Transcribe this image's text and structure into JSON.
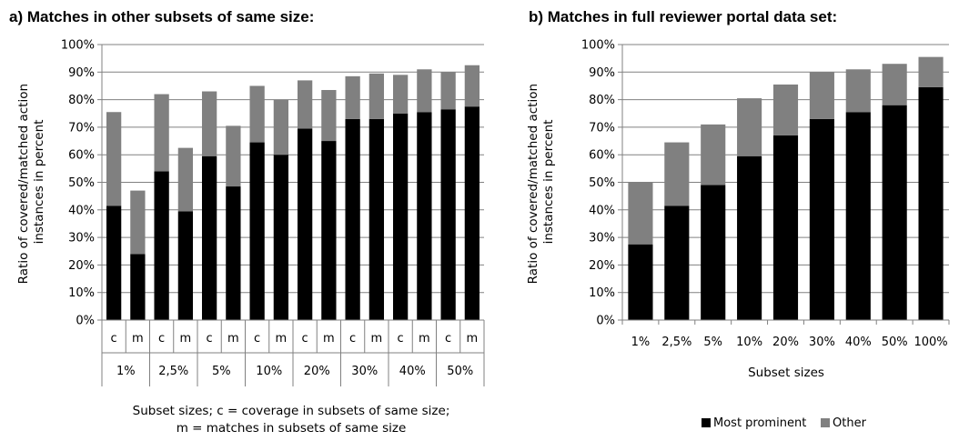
{
  "colors": {
    "most_prominent": "#000000",
    "other": "#808080",
    "axis": "#808080",
    "grid": "#808080"
  },
  "chart_data": [
    {
      "type": "bar",
      "stacked": true,
      "title": "a) Matches in other subsets of same size:",
      "ylabel_lines": [
        "Ratio of covered/matched action",
        "instances in percent"
      ],
      "xlabel_lines": [
        "Subset sizes; c = coverage in subsets of same size;",
        "m = matches in subsets of same size"
      ],
      "ylim": [
        0,
        100
      ],
      "yticks": [
        "0%",
        "10%",
        "20%",
        "30%",
        "40%",
        "50%",
        "60%",
        "70%",
        "80%",
        "90%",
        "100%"
      ],
      "grid": true,
      "groups": [
        "1%",
        "2,5%",
        "5%",
        "10%",
        "20%",
        "30%",
        "40%",
        "50%"
      ],
      "subcategories": [
        "c",
        "m"
      ],
      "series": [
        {
          "name": "Most prominent",
          "values": [
            [
              41.5,
              24
            ],
            [
              54,
              39.5
            ],
            [
              59.5,
              48.5
            ],
            [
              64.5,
              60
            ],
            [
              69.5,
              65
            ],
            [
              73,
              73
            ],
            [
              75,
              75.5
            ],
            [
              76.5,
              77.5
            ]
          ]
        },
        {
          "name": "Other",
          "values": [
            [
              34,
              23
            ],
            [
              28,
              23
            ],
            [
              23.5,
              22
            ],
            [
              20.5,
              20
            ],
            [
              17.5,
              18.5
            ],
            [
              15.5,
              16.5
            ],
            [
              14,
              15.5
            ],
            [
              13.5,
              15
            ]
          ]
        }
      ]
    },
    {
      "type": "bar",
      "stacked": true,
      "title": "b) Matches in full reviewer portal data set:",
      "ylabel_lines": [
        "Ratio of covered/matched action",
        "instances in percent"
      ],
      "xlabel": "Subset sizes",
      "ylim": [
        0,
        100
      ],
      "yticks": [
        "0%",
        "10%",
        "20%",
        "30%",
        "40%",
        "50%",
        "60%",
        "70%",
        "80%",
        "90%",
        "100%"
      ],
      "grid": true,
      "categories": [
        "1%",
        "2,5%",
        "5%",
        "10%",
        "20%",
        "30%",
        "40%",
        "50%",
        "100%"
      ],
      "series": [
        {
          "name": "Most prominent",
          "values": [
            27.5,
            41.5,
            49,
            59.5,
            67,
            73,
            75.5,
            78,
            84.5
          ]
        },
        {
          "name": "Other",
          "values": [
            22.5,
            23,
            22,
            21,
            18.5,
            17,
            15.5,
            15,
            11
          ]
        }
      ],
      "legend": {
        "position": "bottom",
        "entries": [
          "Most prominent",
          "Other"
        ]
      }
    }
  ]
}
